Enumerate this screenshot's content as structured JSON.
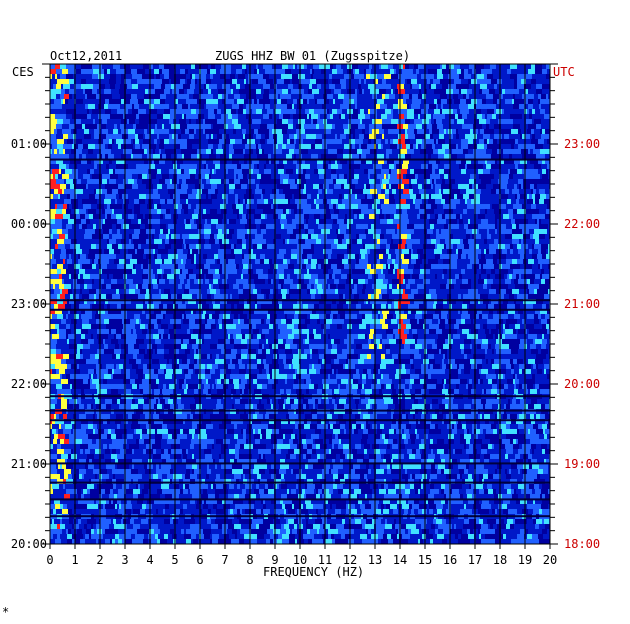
{
  "header": {
    "date": "Oct12,2011",
    "station": "ZUGS HHZ BW 01 (Zugsspitze)"
  },
  "footer_mark": "*",
  "chart_data": {
    "type": "heatmap",
    "title": "ZUGS HHZ BW 01 (Zugsspitze)",
    "date": "Oct12,2011",
    "xlabel": "FREQUENCY (HZ)",
    "x_ticks": [
      "0",
      "1",
      "2",
      "3",
      "4",
      "5",
      "6",
      "7",
      "8",
      "9",
      "10",
      "11",
      "12",
      "13",
      "14",
      "15",
      "16",
      "17",
      "18",
      "19",
      "20"
    ],
    "xlim": [
      0,
      20
    ],
    "left_axis": {
      "label": "CES",
      "ticks": [
        "01:00",
        "00:00",
        "23:00",
        "22:00",
        "21:00",
        "20:00"
      ]
    },
    "right_axis": {
      "label": "UTC",
      "ticks": [
        "23:00",
        "22:00",
        "21:00",
        "20:00",
        "19:00",
        "18:00"
      ]
    },
    "time_span_hours": 6,
    "colors": {
      "background": "#0018c8",
      "low": "#0000a0",
      "mid": "#2060ff",
      "high": "#40e0ff",
      "peak": "#ffff40",
      "max": "#ff2020",
      "left_axis_color": "#000000",
      "right_axis_color": "#cc0000"
    },
    "features": [
      {
        "description_freq_hz": 0.3,
        "intensity": "high"
      },
      {
        "description_freq_hz": 14.0,
        "intensity": "high"
      },
      {
        "description_freq_hz": 13.0,
        "intensity": "medium"
      }
    ]
  }
}
